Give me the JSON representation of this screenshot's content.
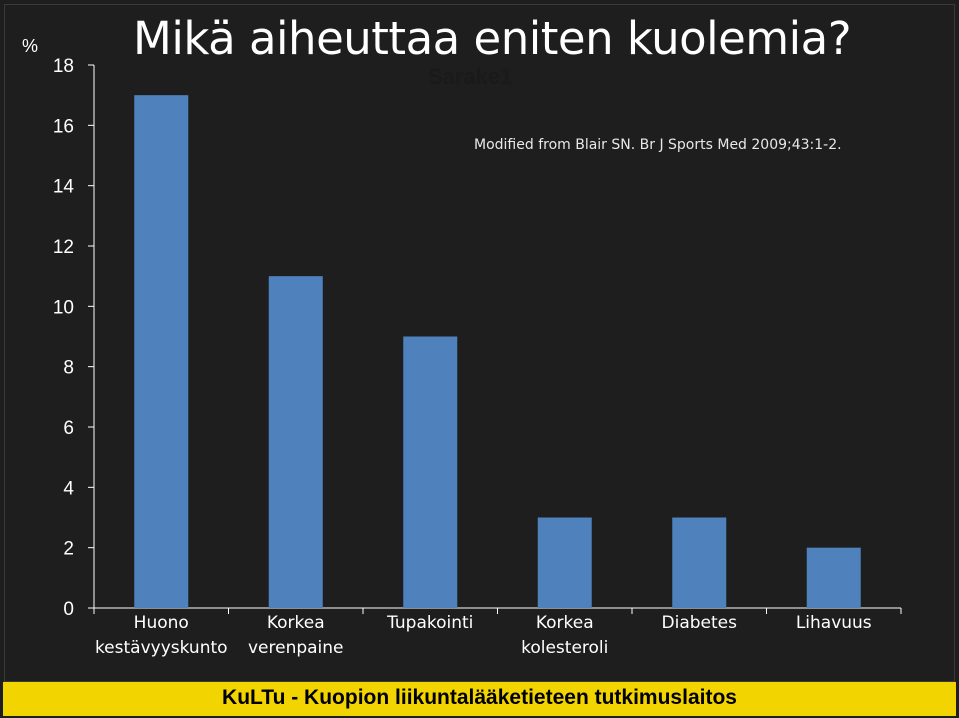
{
  "title": "Mikä aiheuttaa eniten kuolemia?",
  "unit_label": "%",
  "source_note": "Modified from Blair SN. Br J Sports Med 2009;43:1-2.",
  "footer": "KuLTu - Kuopion liikuntalääketieteen tutkimuslaitos",
  "colors": {
    "background": "#1e1e1e",
    "bar": "#4f81bd",
    "axis": "#ffffff",
    "footer": "#f2d500"
  },
  "chart_data": {
    "type": "bar",
    "categories": [
      [
        "Huono",
        "kestävyyskunto"
      ],
      [
        "Korkea",
        "verenpaine"
      ],
      [
        "Tupakointi"
      ],
      [
        "Korkea",
        "kolesteroli"
      ],
      [
        "Diabetes"
      ],
      [
        "Lihavuus"
      ]
    ],
    "series": [
      {
        "name": "Sarake1",
        "values": [
          17,
          11,
          9,
          3,
          3,
          2
        ]
      }
    ],
    "ylim": [
      0,
      18
    ],
    "yticks": [
      0,
      2,
      4,
      6,
      8,
      10,
      12,
      14,
      16,
      18
    ],
    "ylabel": "%",
    "grid": false,
    "legend": "none"
  }
}
